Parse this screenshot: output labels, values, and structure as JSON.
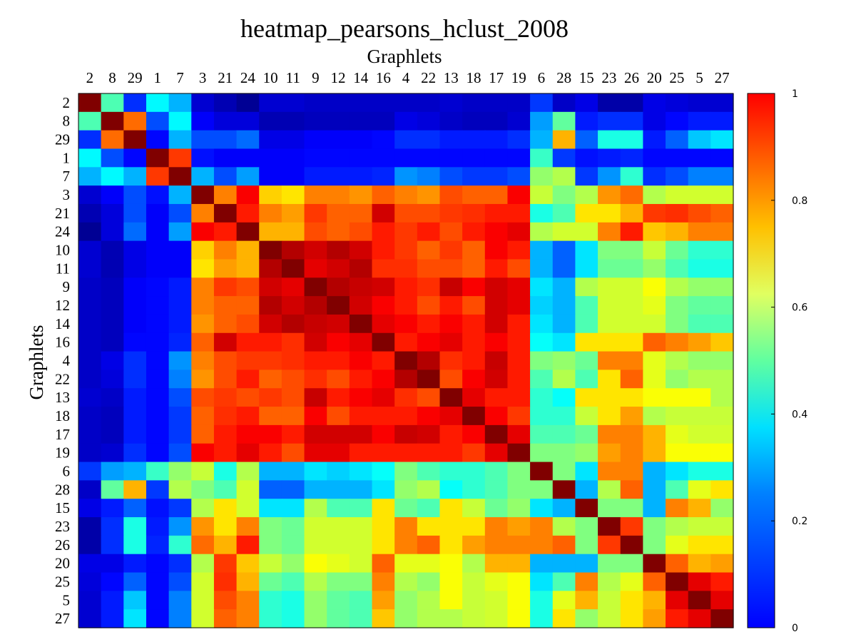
{
  "chart_data": {
    "type": "heatmap",
    "title": "heatmap_pearsons_hclust_2008",
    "xlabel": "Graphlets",
    "ylabel": "Graphlets",
    "x_labels": [
      "2",
      "8",
      "29",
      "1",
      "7",
      "3",
      "21",
      "24",
      "10",
      "11",
      "9",
      "12",
      "14",
      "16",
      "4",
      "22",
      "13",
      "18",
      "17",
      "19",
      "6",
      "28",
      "15",
      "23",
      "26",
      "20",
      "25",
      "5",
      "27"
    ],
    "y_labels": [
      "2",
      "8",
      "29",
      "1",
      "7",
      "3",
      "21",
      "24",
      "10",
      "11",
      "9",
      "12",
      "14",
      "16",
      "4",
      "22",
      "13",
      "18",
      "17",
      "19",
      "6",
      "28",
      "15",
      "23",
      "26",
      "20",
      "25",
      "5",
      "27"
    ],
    "colorbar": {
      "range": [
        0,
        1
      ],
      "ticks": [
        "0",
        "0.2",
        "0.4",
        "0.6",
        "0.8",
        "1"
      ],
      "colormap": "jet"
    },
    "values": [
      [
        1.0,
        0.45,
        0.17,
        0.37,
        0.3,
        0.08,
        0.05,
        0.02,
        0.08,
        0.08,
        0.07,
        0.07,
        0.07,
        0.07,
        0.07,
        0.07,
        0.08,
        0.07,
        0.07,
        0.07,
        0.18,
        0.07,
        0.1,
        0.04,
        0.04,
        0.1,
        0.09,
        0.08,
        0.08
      ],
      [
        0.45,
        1.0,
        0.77,
        0.2,
        0.37,
        0.12,
        0.09,
        0.09,
        0.05,
        0.05,
        0.06,
        0.06,
        0.06,
        0.06,
        0.1,
        0.09,
        0.07,
        0.06,
        0.06,
        0.08,
        0.28,
        0.47,
        0.15,
        0.17,
        0.17,
        0.1,
        0.13,
        0.15,
        0.15
      ],
      [
        0.17,
        0.77,
        1.0,
        0.13,
        0.3,
        0.2,
        0.2,
        0.23,
        0.1,
        0.1,
        0.12,
        0.12,
        0.12,
        0.13,
        0.17,
        0.17,
        0.15,
        0.15,
        0.15,
        0.17,
        0.3,
        0.7,
        0.22,
        0.4,
        0.4,
        0.15,
        0.22,
        0.32,
        0.35
      ],
      [
        0.37,
        0.2,
        0.13,
        1.0,
        0.82,
        0.14,
        0.12,
        0.12,
        0.12,
        0.12,
        0.13,
        0.13,
        0.13,
        0.13,
        0.13,
        0.13,
        0.13,
        0.13,
        0.13,
        0.13,
        0.43,
        0.18,
        0.14,
        0.15,
        0.16,
        0.13,
        0.13,
        0.13,
        0.13
      ],
      [
        0.3,
        0.37,
        0.3,
        0.82,
        1.0,
        0.3,
        0.2,
        0.28,
        0.12,
        0.12,
        0.15,
        0.15,
        0.15,
        0.16,
        0.27,
        0.25,
        0.2,
        0.18,
        0.18,
        0.2,
        0.52,
        0.55,
        0.18,
        0.27,
        0.42,
        0.17,
        0.2,
        0.25,
        0.25
      ],
      [
        0.08,
        0.12,
        0.2,
        0.14,
        0.3,
        1.0,
        0.75,
        0.88,
        0.67,
        0.65,
        0.75,
        0.75,
        0.73,
        0.78,
        0.75,
        0.73,
        0.8,
        0.78,
        0.78,
        0.88,
        0.57,
        0.5,
        0.55,
        0.73,
        0.77,
        0.55,
        0.58,
        0.58,
        0.58
      ],
      [
        0.05,
        0.09,
        0.2,
        0.12,
        0.2,
        0.75,
        1.0,
        0.85,
        0.75,
        0.72,
        0.82,
        0.78,
        0.78,
        0.92,
        0.8,
        0.8,
        0.82,
        0.83,
        0.85,
        0.85,
        0.4,
        0.45,
        0.65,
        0.65,
        0.7,
        0.82,
        0.83,
        0.8,
        0.78
      ],
      [
        0.02,
        0.09,
        0.23,
        0.12,
        0.28,
        0.88,
        0.85,
        1.0,
        0.7,
        0.7,
        0.8,
        0.78,
        0.8,
        0.85,
        0.82,
        0.85,
        0.8,
        0.85,
        0.88,
        0.9,
        0.55,
        0.58,
        0.58,
        0.75,
        0.85,
        0.68,
        0.7,
        0.75,
        0.75
      ],
      [
        0.08,
        0.05,
        0.1,
        0.12,
        0.12,
        0.67,
        0.75,
        0.7,
        1.0,
        0.95,
        0.92,
        0.95,
        0.92,
        0.85,
        0.82,
        0.78,
        0.82,
        0.78,
        0.88,
        0.85,
        0.3,
        0.22,
        0.35,
        0.5,
        0.5,
        0.57,
        0.48,
        0.42,
        0.42
      ],
      [
        0.08,
        0.05,
        0.1,
        0.12,
        0.12,
        0.65,
        0.72,
        0.7,
        0.95,
        1.0,
        0.9,
        0.92,
        0.95,
        0.83,
        0.83,
        0.8,
        0.8,
        0.78,
        0.85,
        0.8,
        0.3,
        0.22,
        0.35,
        0.48,
        0.48,
        0.52,
        0.45,
        0.4,
        0.4
      ],
      [
        0.07,
        0.06,
        0.12,
        0.13,
        0.15,
        0.75,
        0.82,
        0.8,
        0.92,
        0.9,
        1.0,
        0.95,
        0.93,
        0.92,
        0.85,
        0.83,
        0.93,
        0.88,
        0.92,
        0.9,
        0.35,
        0.3,
        0.55,
        0.58,
        0.58,
        0.62,
        0.55,
        0.52,
        0.52
      ],
      [
        0.07,
        0.06,
        0.12,
        0.13,
        0.15,
        0.75,
        0.78,
        0.78,
        0.95,
        0.92,
        0.95,
        1.0,
        0.92,
        0.88,
        0.85,
        0.8,
        0.85,
        0.8,
        0.92,
        0.9,
        0.33,
        0.3,
        0.45,
        0.58,
        0.58,
        0.6,
        0.5,
        0.47,
        0.47
      ],
      [
        0.07,
        0.06,
        0.12,
        0.13,
        0.15,
        0.73,
        0.78,
        0.8,
        0.92,
        0.95,
        0.93,
        0.92,
        1.0,
        0.9,
        0.88,
        0.85,
        0.88,
        0.85,
        0.92,
        0.85,
        0.35,
        0.3,
        0.45,
        0.58,
        0.58,
        0.58,
        0.5,
        0.45,
        0.45
      ],
      [
        0.07,
        0.06,
        0.13,
        0.13,
        0.16,
        0.78,
        0.92,
        0.85,
        0.85,
        0.83,
        0.92,
        0.88,
        0.9,
        1.0,
        0.85,
        0.88,
        0.9,
        0.85,
        0.88,
        0.85,
        0.38,
        0.35,
        0.65,
        0.65,
        0.65,
        0.78,
        0.75,
        0.72,
        0.68
      ],
      [
        0.07,
        0.1,
        0.17,
        0.13,
        0.27,
        0.75,
        0.8,
        0.82,
        0.82,
        0.83,
        0.85,
        0.85,
        0.88,
        0.85,
        1.0,
        0.95,
        0.83,
        0.85,
        0.93,
        0.85,
        0.5,
        0.52,
        0.48,
        0.75,
        0.75,
        0.6,
        0.55,
        0.52,
        0.52
      ],
      [
        0.07,
        0.09,
        0.17,
        0.13,
        0.25,
        0.73,
        0.8,
        0.85,
        0.78,
        0.8,
        0.83,
        0.8,
        0.85,
        0.88,
        0.95,
        1.0,
        0.8,
        0.88,
        0.92,
        0.85,
        0.45,
        0.55,
        0.45,
        0.65,
        0.78,
        0.6,
        0.52,
        0.55,
        0.55
      ],
      [
        0.08,
        0.07,
        0.15,
        0.13,
        0.2,
        0.8,
        0.82,
        0.8,
        0.82,
        0.8,
        0.93,
        0.85,
        0.88,
        0.9,
        0.83,
        0.8,
        1.0,
        0.9,
        0.85,
        0.85,
        0.42,
        0.38,
        0.65,
        0.65,
        0.65,
        0.62,
        0.62,
        0.62,
        0.55
      ],
      [
        0.07,
        0.06,
        0.15,
        0.13,
        0.18,
        0.78,
        0.83,
        0.85,
        0.78,
        0.78,
        0.88,
        0.8,
        0.85,
        0.85,
        0.85,
        0.88,
        0.9,
        1.0,
        0.88,
        0.82,
        0.42,
        0.42,
        0.57,
        0.65,
        0.72,
        0.55,
        0.57,
        0.57,
        0.57
      ],
      [
        0.07,
        0.06,
        0.15,
        0.13,
        0.18,
        0.78,
        0.85,
        0.88,
        0.88,
        0.85,
        0.92,
        0.92,
        0.92,
        0.88,
        0.93,
        0.92,
        0.85,
        0.88,
        1.0,
        0.9,
        0.45,
        0.45,
        0.48,
        0.75,
        0.75,
        0.7,
        0.6,
        0.58,
        0.58
      ],
      [
        0.07,
        0.08,
        0.17,
        0.13,
        0.2,
        0.88,
        0.85,
        0.9,
        0.85,
        0.8,
        0.9,
        0.9,
        0.85,
        0.85,
        0.85,
        0.85,
        0.85,
        0.82,
        0.9,
        1.0,
        0.5,
        0.5,
        0.52,
        0.72,
        0.75,
        0.7,
        0.62,
        0.62,
        0.62
      ],
      [
        0.18,
        0.28,
        0.3,
        0.43,
        0.52,
        0.57,
        0.4,
        0.55,
        0.3,
        0.3,
        0.35,
        0.33,
        0.35,
        0.38,
        0.5,
        0.45,
        0.42,
        0.42,
        0.45,
        0.5,
        1.0,
        0.5,
        0.35,
        0.75,
        0.75,
        0.3,
        0.35,
        0.4,
        0.4
      ],
      [
        0.07,
        0.47,
        0.7,
        0.18,
        0.55,
        0.5,
        0.45,
        0.58,
        0.22,
        0.22,
        0.3,
        0.3,
        0.3,
        0.35,
        0.52,
        0.55,
        0.38,
        0.42,
        0.45,
        0.5,
        0.5,
        1.0,
        0.3,
        0.55,
        0.78,
        0.3,
        0.45,
        0.6,
        0.65
      ],
      [
        0.1,
        0.15,
        0.22,
        0.14,
        0.18,
        0.55,
        0.65,
        0.58,
        0.35,
        0.35,
        0.55,
        0.45,
        0.45,
        0.65,
        0.48,
        0.45,
        0.65,
        0.57,
        0.48,
        0.52,
        0.35,
        0.3,
        1.0,
        0.5,
        0.5,
        0.3,
        0.75,
        0.7,
        0.52
      ],
      [
        0.04,
        0.17,
        0.4,
        0.15,
        0.27,
        0.73,
        0.65,
        0.75,
        0.5,
        0.48,
        0.58,
        0.58,
        0.58,
        0.65,
        0.75,
        0.65,
        0.65,
        0.65,
        0.75,
        0.72,
        0.75,
        0.55,
        0.5,
        1.0,
        0.82,
        0.5,
        0.55,
        0.57,
        0.57
      ],
      [
        0.04,
        0.17,
        0.4,
        0.16,
        0.42,
        0.77,
        0.7,
        0.85,
        0.5,
        0.48,
        0.58,
        0.58,
        0.58,
        0.65,
        0.75,
        0.78,
        0.65,
        0.72,
        0.75,
        0.75,
        0.75,
        0.78,
        0.5,
        0.82,
        1.0,
        0.5,
        0.6,
        0.65,
        0.65
      ],
      [
        0.1,
        0.1,
        0.15,
        0.13,
        0.17,
        0.55,
        0.82,
        0.68,
        0.57,
        0.52,
        0.62,
        0.6,
        0.58,
        0.78,
        0.6,
        0.6,
        0.62,
        0.55,
        0.7,
        0.7,
        0.3,
        0.3,
        0.3,
        0.5,
        0.5,
        1.0,
        0.78,
        0.7,
        0.72
      ],
      [
        0.09,
        0.13,
        0.22,
        0.13,
        0.2,
        0.58,
        0.83,
        0.7,
        0.48,
        0.45,
        0.55,
        0.5,
        0.5,
        0.75,
        0.55,
        0.52,
        0.62,
        0.57,
        0.6,
        0.62,
        0.35,
        0.45,
        0.75,
        0.55,
        0.6,
        0.78,
        1.0,
        0.9,
        0.85
      ],
      [
        0.08,
        0.15,
        0.32,
        0.13,
        0.25,
        0.58,
        0.8,
        0.75,
        0.42,
        0.4,
        0.52,
        0.47,
        0.45,
        0.72,
        0.52,
        0.55,
        0.62,
        0.57,
        0.58,
        0.62,
        0.4,
        0.6,
        0.7,
        0.57,
        0.65,
        0.7,
        0.9,
        1.0,
        0.9
      ],
      [
        0.08,
        0.15,
        0.35,
        0.13,
        0.25,
        0.58,
        0.78,
        0.75,
        0.42,
        0.4,
        0.52,
        0.47,
        0.45,
        0.68,
        0.52,
        0.55,
        0.55,
        0.57,
        0.58,
        0.62,
        0.4,
        0.65,
        0.52,
        0.57,
        0.65,
        0.72,
        0.85,
        0.9,
        1.0
      ]
    ]
  }
}
